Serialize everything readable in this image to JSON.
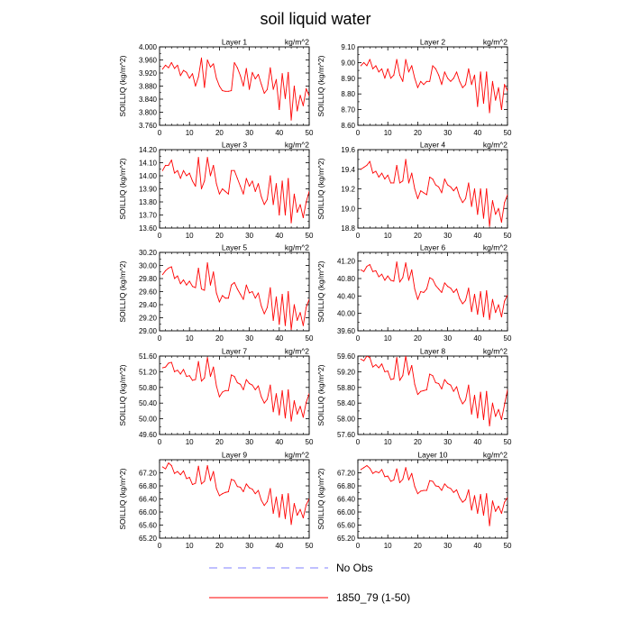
{
  "figure": {
    "title": "soil liquid water",
    "legend": [
      {
        "label": "No Obs",
        "color": "#8080ff",
        "dash": "dashed"
      },
      {
        "label": "1850_79 (1-50)",
        "color": "#ff0000",
        "dash": "solid"
      }
    ],
    "series_color": "#ff0000"
  },
  "chart_data": [
    {
      "type": "line",
      "title": "Layer 1",
      "units": "kg/m^2",
      "ylabel": "SOILLIQ  (kg/m^2)",
      "xlim": [
        0,
        50
      ],
      "xticks": [
        0,
        10,
        20,
        30,
        40,
        50
      ],
      "ylim": [
        3.76,
        4.0
      ],
      "yticks": [
        "4.000",
        "3.960",
        "3.920",
        "3.880",
        "3.840",
        "3.800",
        "3.760"
      ],
      "x": [
        1,
        2,
        3,
        4,
        5,
        6,
        7,
        8,
        9,
        10,
        11,
        12,
        13,
        14,
        15,
        16,
        17,
        18,
        19,
        20,
        21,
        22,
        23,
        24,
        25,
        26,
        27,
        28,
        29,
        30,
        31,
        32,
        33,
        34,
        35,
        36,
        37,
        38,
        39,
        40,
        41,
        42,
        43,
        44,
        45,
        46,
        47,
        48,
        49,
        50
      ],
      "values": [
        3.932,
        3.944,
        3.936,
        3.952,
        3.934,
        3.944,
        3.912,
        3.928,
        3.922,
        3.904,
        3.918,
        3.88,
        3.908,
        3.966,
        3.876,
        3.96,
        3.938,
        3.948,
        3.904,
        3.88,
        3.866,
        3.864,
        3.864,
        3.866,
        3.952,
        3.936,
        3.912,
        3.88,
        3.934,
        3.87,
        3.922,
        3.902,
        3.916,
        3.886,
        3.858,
        3.87,
        3.936,
        3.87,
        3.9,
        3.808,
        3.918,
        3.842,
        3.922,
        3.776,
        3.88,
        3.804,
        3.852,
        3.82,
        3.872,
        3.85
      ]
    },
    {
      "type": "line",
      "title": "Layer 2",
      "units": "kg/m^2",
      "ylabel": "SOILLIQ  (kg/m^2)",
      "xlim": [
        0,
        50
      ],
      "xticks": [
        0,
        10,
        20,
        30,
        40,
        50
      ],
      "ylim": [
        8.6,
        9.1
      ],
      "yticks": [
        "9.10",
        "9.00",
        "8.90",
        "8.80",
        "8.70",
        "8.60"
      ],
      "x": [
        1,
        2,
        3,
        4,
        5,
        6,
        7,
        8,
        9,
        10,
        11,
        12,
        13,
        14,
        15,
        16,
        17,
        18,
        19,
        20,
        21,
        22,
        23,
        24,
        25,
        26,
        27,
        28,
        29,
        30,
        31,
        32,
        33,
        34,
        35,
        36,
        37,
        38,
        39,
        40,
        41,
        42,
        43,
        44,
        45,
        46,
        47,
        48,
        49,
        50
      ],
      "values": [
        8.98,
        9.0,
        8.98,
        9.02,
        8.96,
        8.98,
        8.94,
        8.96,
        8.9,
        8.96,
        8.9,
        8.92,
        9.02,
        8.92,
        8.88,
        9.02,
        8.94,
        8.98,
        8.9,
        8.84,
        8.88,
        8.86,
        8.88,
        8.88,
        8.98,
        8.96,
        8.92,
        8.86,
        8.94,
        8.9,
        8.88,
        8.9,
        8.94,
        8.88,
        8.84,
        8.86,
        8.96,
        8.86,
        8.92,
        8.72,
        8.94,
        8.74,
        8.94,
        8.68,
        8.88,
        8.76,
        8.84,
        8.7,
        8.86,
        8.82
      ]
    },
    {
      "type": "line",
      "title": "Layer 3",
      "units": "kg/m^2",
      "ylabel": "SOILLIQ  (kg/m^2)",
      "xlim": [
        0,
        50
      ],
      "xticks": [
        0,
        10,
        20,
        30,
        40,
        50
      ],
      "ylim": [
        13.6,
        14.2
      ],
      "yticks": [
        "14.20",
        "14.10",
        "14.00",
        "13.90",
        "13.80",
        "13.70",
        "13.60"
      ],
      "x": [
        1,
        2,
        3,
        4,
        5,
        6,
        7,
        8,
        9,
        10,
        11,
        12,
        13,
        14,
        15,
        16,
        17,
        18,
        19,
        20,
        21,
        22,
        23,
        24,
        25,
        26,
        27,
        28,
        29,
        30,
        31,
        32,
        33,
        34,
        35,
        36,
        37,
        38,
        39,
        40,
        41,
        42,
        43,
        44,
        45,
        46,
        47,
        48,
        49,
        50
      ],
      "values": [
        14.04,
        14.08,
        14.08,
        14.12,
        14.02,
        14.04,
        13.98,
        14.04,
        14.0,
        14.02,
        13.96,
        13.92,
        14.14,
        13.9,
        13.96,
        14.14,
        14.0,
        14.08,
        13.94,
        13.86,
        13.9,
        13.88,
        13.86,
        14.04,
        14.04,
        13.98,
        13.92,
        13.86,
        13.98,
        13.92,
        13.96,
        13.88,
        13.94,
        13.84,
        13.78,
        13.82,
        14.0,
        13.78,
        13.94,
        13.7,
        13.96,
        13.7,
        13.98,
        13.64,
        13.86,
        13.72,
        13.78,
        13.68,
        13.8,
        13.88
      ]
    },
    {
      "type": "line",
      "title": "Layer 4",
      "units": "kg/m^2",
      "ylabel": "SOILLIQ  (kg/m^2)",
      "xlim": [
        0,
        50
      ],
      "xticks": [
        0,
        10,
        20,
        30,
        40,
        50
      ],
      "ylim": [
        18.8,
        19.6
      ],
      "yticks": [
        "19.6",
        "19.4",
        "19.2",
        "19.0",
        "18.8"
      ],
      "x": [
        1,
        2,
        3,
        4,
        5,
        6,
        7,
        8,
        9,
        10,
        11,
        12,
        13,
        14,
        15,
        16,
        17,
        18,
        19,
        20,
        21,
        22,
        23,
        24,
        25,
        26,
        27,
        28,
        29,
        30,
        31,
        32,
        33,
        34,
        35,
        36,
        37,
        38,
        39,
        40,
        41,
        42,
        43,
        44,
        45,
        46,
        47,
        48,
        49,
        50
      ],
      "values": [
        19.4,
        19.42,
        19.44,
        19.48,
        19.36,
        19.38,
        19.32,
        19.36,
        19.3,
        19.34,
        19.26,
        19.26,
        19.44,
        19.26,
        19.28,
        19.5,
        19.26,
        19.36,
        19.2,
        19.1,
        19.18,
        19.16,
        19.14,
        19.32,
        19.3,
        19.24,
        19.22,
        19.16,
        19.3,
        19.24,
        19.22,
        19.18,
        19.22,
        19.12,
        19.06,
        19.1,
        19.26,
        19.02,
        19.2,
        18.94,
        19.2,
        18.9,
        19.2,
        18.82,
        19.08,
        18.94,
        19.0,
        18.86,
        19.06,
        19.14
      ]
    },
    {
      "type": "line",
      "title": "Layer 5",
      "units": "kg/m^2",
      "ylabel": "SOILLIQ  (kg/m^2)",
      "xlim": [
        0,
        50
      ],
      "xticks": [
        0,
        10,
        20,
        30,
        40,
        50
      ],
      "ylim": [
        29.0,
        30.2
      ],
      "yticks": [
        "30.20",
        "30.00",
        "29.80",
        "29.60",
        "29.40",
        "29.20",
        "29.00"
      ],
      "x": [
        1,
        2,
        3,
        4,
        5,
        6,
        7,
        8,
        9,
        10,
        11,
        12,
        13,
        14,
        15,
        16,
        17,
        18,
        19,
        20,
        21,
        22,
        23,
        24,
        25,
        26,
        27,
        28,
        29,
        30,
        31,
        32,
        33,
        34,
        35,
        36,
        37,
        38,
        39,
        40,
        41,
        42,
        43,
        44,
        45,
        46,
        47,
        48,
        49,
        50
      ],
      "values": [
        29.86,
        29.92,
        29.96,
        29.98,
        29.8,
        29.84,
        29.72,
        29.78,
        29.7,
        29.76,
        29.68,
        29.66,
        29.96,
        29.64,
        29.62,
        30.04,
        29.7,
        29.9,
        29.58,
        29.44,
        29.54,
        29.5,
        29.5,
        29.7,
        29.74,
        29.64,
        29.56,
        29.48,
        29.7,
        29.58,
        29.6,
        29.5,
        29.58,
        29.38,
        29.26,
        29.36,
        29.66,
        29.16,
        29.52,
        29.1,
        29.56,
        29.08,
        29.6,
        29.02,
        29.4,
        29.16,
        29.28,
        29.08,
        29.36,
        29.48
      ]
    },
    {
      "type": "line",
      "title": "Layer 6",
      "units": "kg/m^2",
      "ylabel": "SOILLIQ  (kg/m^2)",
      "xlim": [
        0,
        50
      ],
      "xticks": [
        0,
        10,
        20,
        30,
        40,
        50
      ],
      "ylim": [
        39.6,
        41.4
      ],
      "yticks": [
        "41.20",
        "40.80",
        "40.40",
        "40.00",
        "39.60"
      ],
      "x": [
        1,
        2,
        3,
        4,
        5,
        6,
        7,
        8,
        9,
        10,
        11,
        12,
        13,
        14,
        15,
        16,
        17,
        18,
        19,
        20,
        21,
        22,
        23,
        24,
        25,
        26,
        27,
        28,
        29,
        30,
        31,
        32,
        33,
        34,
        35,
        36,
        37,
        38,
        39,
        40,
        41,
        42,
        43,
        44,
        45,
        46,
        47,
        48,
        49,
        50
      ],
      "values": [
        41.0,
        40.96,
        41.08,
        41.12,
        40.96,
        40.98,
        40.84,
        40.9,
        40.76,
        40.86,
        40.76,
        40.74,
        41.18,
        40.72,
        40.82,
        41.16,
        40.76,
        41.0,
        40.56,
        40.32,
        40.5,
        40.48,
        40.56,
        40.82,
        40.78,
        40.64,
        40.56,
        40.48,
        40.7,
        40.62,
        40.58,
        40.48,
        40.56,
        40.34,
        40.22,
        40.3,
        40.58,
        40.04,
        40.44,
        39.98,
        40.5,
        39.92,
        40.52,
        39.86,
        40.32,
        40.02,
        40.2,
        39.92,
        40.28,
        40.42
      ]
    },
    {
      "type": "line",
      "title": "Layer 7",
      "units": "kg/m^2",
      "ylabel": "SOILLIQ  (kg/m^2)",
      "xlim": [
        0,
        50
      ],
      "xticks": [
        0,
        10,
        20,
        30,
        40,
        50
      ],
      "ylim": [
        49.6,
        51.6
      ],
      "yticks": [
        "51.60",
        "51.20",
        "50.80",
        "50.40",
        "50.00",
        "49.60"
      ],
      "x": [
        1,
        2,
        3,
        4,
        5,
        6,
        7,
        8,
        9,
        10,
        11,
        12,
        13,
        14,
        15,
        16,
        17,
        18,
        19,
        20,
        21,
        22,
        23,
        24,
        25,
        26,
        27,
        28,
        29,
        30,
        31,
        32,
        33,
        34,
        35,
        36,
        37,
        38,
        39,
        40,
        41,
        42,
        43,
        44,
        45,
        46,
        47,
        48,
        49,
        50
      ],
      "values": [
        51.3,
        51.32,
        51.42,
        51.44,
        51.2,
        51.24,
        51.14,
        51.26,
        51.08,
        51.1,
        50.98,
        51.0,
        51.46,
        50.96,
        51.04,
        51.56,
        51.08,
        51.32,
        50.84,
        50.56,
        50.68,
        50.72,
        50.72,
        51.12,
        51.08,
        50.92,
        50.88,
        50.74,
        51.0,
        50.9,
        50.86,
        50.74,
        50.84,
        50.56,
        50.4,
        50.5,
        50.86,
        50.18,
        50.64,
        50.1,
        50.72,
        50.02,
        50.74,
        49.94,
        50.46,
        50.12,
        50.32,
        50.04,
        50.42,
        50.64
      ]
    },
    {
      "type": "line",
      "title": "Layer 8",
      "units": "kg/m^2",
      "ylabel": "SOILLIQ  (kg/m^2)",
      "xlim": [
        0,
        50
      ],
      "xticks": [
        0,
        10,
        20,
        30,
        40,
        50
      ],
      "ylim": [
        57.6,
        59.6
      ],
      "yticks": [
        "59.60",
        "59.20",
        "58.80",
        "58.40",
        "58.00",
        "57.60"
      ],
      "x": [
        1,
        2,
        3,
        4,
        5,
        6,
        7,
        8,
        9,
        10,
        11,
        12,
        13,
        14,
        15,
        16,
        17,
        18,
        19,
        20,
        21,
        22,
        23,
        24,
        25,
        26,
        27,
        28,
        29,
        30,
        31,
        32,
        33,
        34,
        35,
        36,
        37,
        38,
        39,
        40,
        41,
        42,
        43,
        44,
        45,
        46,
        47,
        48,
        49,
        50
      ],
      "values": [
        59.52,
        59.48,
        59.6,
        59.56,
        59.32,
        59.38,
        59.3,
        59.4,
        59.2,
        59.22,
        59.0,
        59.02,
        59.56,
        58.98,
        59.1,
        59.6,
        59.12,
        59.36,
        58.88,
        58.62,
        58.7,
        58.72,
        58.74,
        59.14,
        59.1,
        58.92,
        58.9,
        58.76,
        59.0,
        58.9,
        58.86,
        58.7,
        58.82,
        58.54,
        58.38,
        58.48,
        58.86,
        58.12,
        58.6,
        58.02,
        58.68,
        57.98,
        58.7,
        57.82,
        58.4,
        58.06,
        58.24,
        57.98,
        58.36,
        58.74
      ]
    },
    {
      "type": "line",
      "title": "Layer 9",
      "units": "kg/m^2",
      "ylabel": "SOILLIQ  (kg/m^2)",
      "xlim": [
        0,
        50
      ],
      "xticks": [
        0,
        10,
        20,
        30,
        40,
        50
      ],
      "ylim": [
        65.2,
        67.6
      ],
      "yticks": [
        "67.20",
        "66.80",
        "66.40",
        "66.00",
        "65.60",
        "65.20"
      ],
      "x": [
        1,
        2,
        3,
        4,
        5,
        6,
        7,
        8,
        9,
        10,
        11,
        12,
        13,
        14,
        15,
        16,
        17,
        18,
        19,
        20,
        21,
        22,
        23,
        24,
        25,
        26,
        27,
        28,
        29,
        30,
        31,
        32,
        33,
        34,
        35,
        36,
        37,
        38,
        39,
        40,
        41,
        42,
        43,
        44,
        45,
        46,
        47,
        48,
        49,
        50
      ],
      "values": [
        67.38,
        67.32,
        67.5,
        67.42,
        67.18,
        67.24,
        67.14,
        67.26,
        67.02,
        67.06,
        66.84,
        66.88,
        67.4,
        66.86,
        66.94,
        67.42,
        66.96,
        67.24,
        66.72,
        66.5,
        66.56,
        66.6,
        66.62,
        67.0,
        66.96,
        66.78,
        66.76,
        66.62,
        66.86,
        66.74,
        66.7,
        66.56,
        66.66,
        66.36,
        66.2,
        66.32,
        66.72,
        65.96,
        66.46,
        65.84,
        66.54,
        65.8,
        66.56,
        65.62,
        66.26,
        65.9,
        66.08,
        65.82,
        66.22,
        66.4
      ]
    },
    {
      "type": "line",
      "title": "Layer 10",
      "units": "kg/m^2",
      "ylabel": "SOILLIQ  (kg/m^2)",
      "xlim": [
        0,
        50
      ],
      "xticks": [
        0,
        10,
        20,
        30,
        40,
        50
      ],
      "ylim": [
        65.2,
        67.6
      ],
      "yticks": [
        "67.20",
        "66.80",
        "66.40",
        "66.00",
        "65.60",
        "65.20"
      ],
      "x": [
        1,
        2,
        3,
        4,
        5,
        6,
        7,
        8,
        9,
        10,
        11,
        12,
        13,
        14,
        15,
        16,
        17,
        18,
        19,
        20,
        21,
        22,
        23,
        24,
        25,
        26,
        27,
        28,
        29,
        30,
        31,
        32,
        33,
        34,
        35,
        36,
        37,
        38,
        39,
        40,
        41,
        42,
        43,
        44,
        45,
        46,
        47,
        48,
        49,
        50
      ],
      "values": [
        67.3,
        67.36,
        67.42,
        67.34,
        67.18,
        67.24,
        67.2,
        67.3,
        67.08,
        67.1,
        66.94,
        66.98,
        67.32,
        66.9,
        67.0,
        67.36,
        66.98,
        67.18,
        66.78,
        66.56,
        66.64,
        66.66,
        66.66,
        66.96,
        66.94,
        66.8,
        66.78,
        66.66,
        66.86,
        66.76,
        66.72,
        66.6,
        66.68,
        66.44,
        66.3,
        66.38,
        66.68,
        66.06,
        66.5,
        65.96,
        66.54,
        65.9,
        66.56,
        65.58,
        66.34,
        66.02,
        66.18,
        65.96,
        66.3,
        66.44
      ]
    }
  ]
}
